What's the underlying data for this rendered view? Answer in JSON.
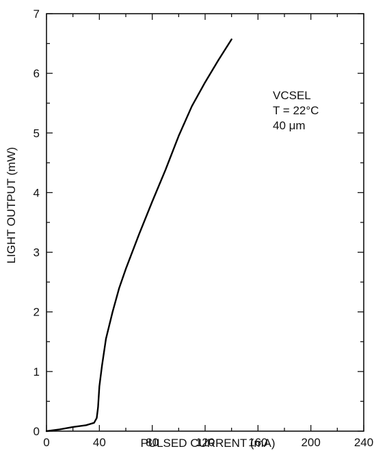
{
  "chart_data": {
    "type": "line",
    "title": "",
    "xlabel": "PULSED CURRENT (mA)",
    "ylabel": "LIGHT OUTPUT (mW)",
    "xlim": [
      0,
      240
    ],
    "ylim": [
      0,
      7
    ],
    "x_ticks": [
      0,
      40,
      80,
      120,
      160,
      200,
      240
    ],
    "y_ticks": [
      0,
      1,
      2,
      3,
      4,
      5,
      6,
      7
    ],
    "grid": false,
    "legend": "none",
    "annotation": [
      "VCSEL",
      "T = 22°C",
      "40 μm"
    ],
    "series": [
      {
        "color": "#000000",
        "x": [
          0,
          10,
          20,
          30,
          36,
          38,
          39,
          40,
          42,
          45,
          50,
          55,
          60,
          70,
          80,
          90,
          100,
          110,
          120,
          130,
          140
        ],
        "y": [
          0.0,
          0.03,
          0.07,
          0.1,
          0.14,
          0.22,
          0.4,
          0.75,
          1.1,
          1.55,
          2.0,
          2.4,
          2.72,
          3.3,
          3.85,
          4.38,
          4.95,
          5.45,
          5.85,
          6.22,
          6.57
        ]
      }
    ]
  }
}
